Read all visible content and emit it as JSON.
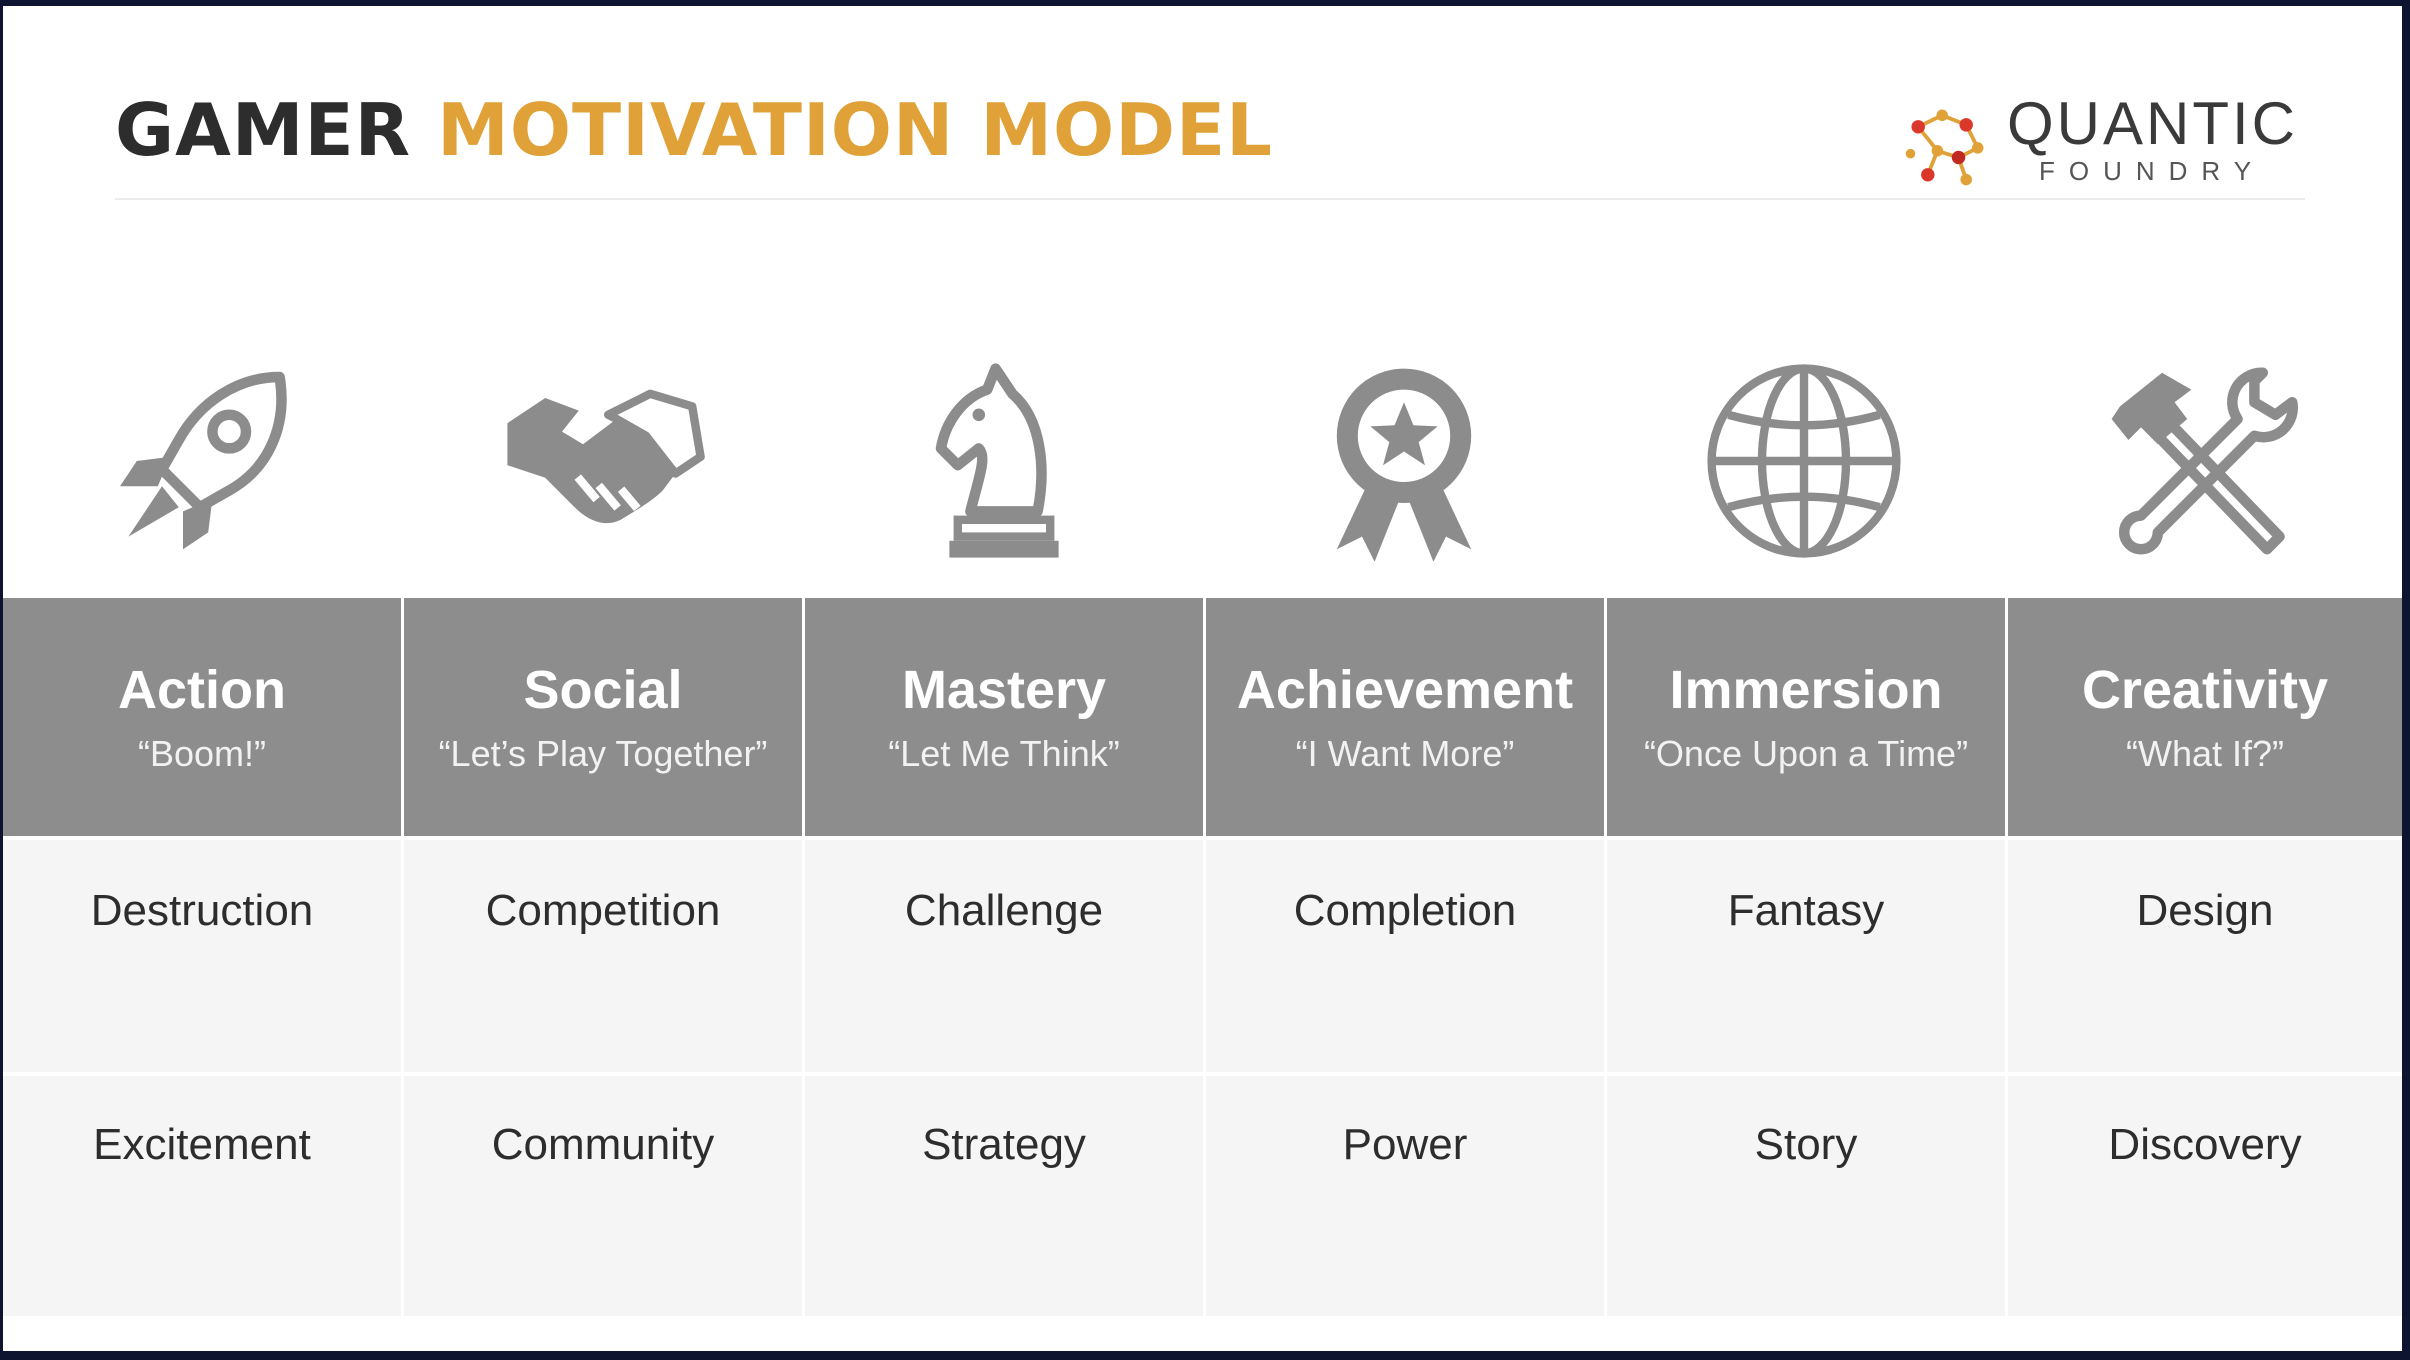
{
  "header": {
    "title_part1": "GAMER",
    "title_part2": "MOTIVATION MODEL",
    "title_color_dark": "#2d2d2d",
    "title_color_accent": "#e0a238"
  },
  "logo": {
    "name": "QUANTIC",
    "sub": "FOUNDRY",
    "icon": "molecule-network-icon"
  },
  "colors": {
    "header_cell": "#8d8d8d",
    "body_cell": "#f5f5f5",
    "icon_gray": "#8c8c8c"
  },
  "columns": [
    {
      "name": "Action",
      "tagline": "“Boom!”",
      "icon": "rocket-icon",
      "row1": "Destruction",
      "row2": "Excitement"
    },
    {
      "name": "Social",
      "tagline": "“Let’s Play Together”",
      "icon": "handshake-icon",
      "row1": "Competition",
      "row2": "Community"
    },
    {
      "name": "Mastery",
      "tagline": "“Let Me Think”",
      "icon": "chess-knight-icon",
      "row1": "Challenge",
      "row2": "Strategy"
    },
    {
      "name": "Achievement",
      "tagline": "“I Want More”",
      "icon": "award-ribbon-icon",
      "row1": "Completion",
      "row2": "Power"
    },
    {
      "name": "Immersion",
      "tagline": "“Once Upon a Time”",
      "icon": "globe-icon",
      "row1": "Fantasy",
      "row2": "Story"
    },
    {
      "name": "Creativity",
      "tagline": "“What If?”",
      "icon": "hammer-wrench-icon",
      "row1": "Design",
      "row2": "Discovery"
    }
  ]
}
